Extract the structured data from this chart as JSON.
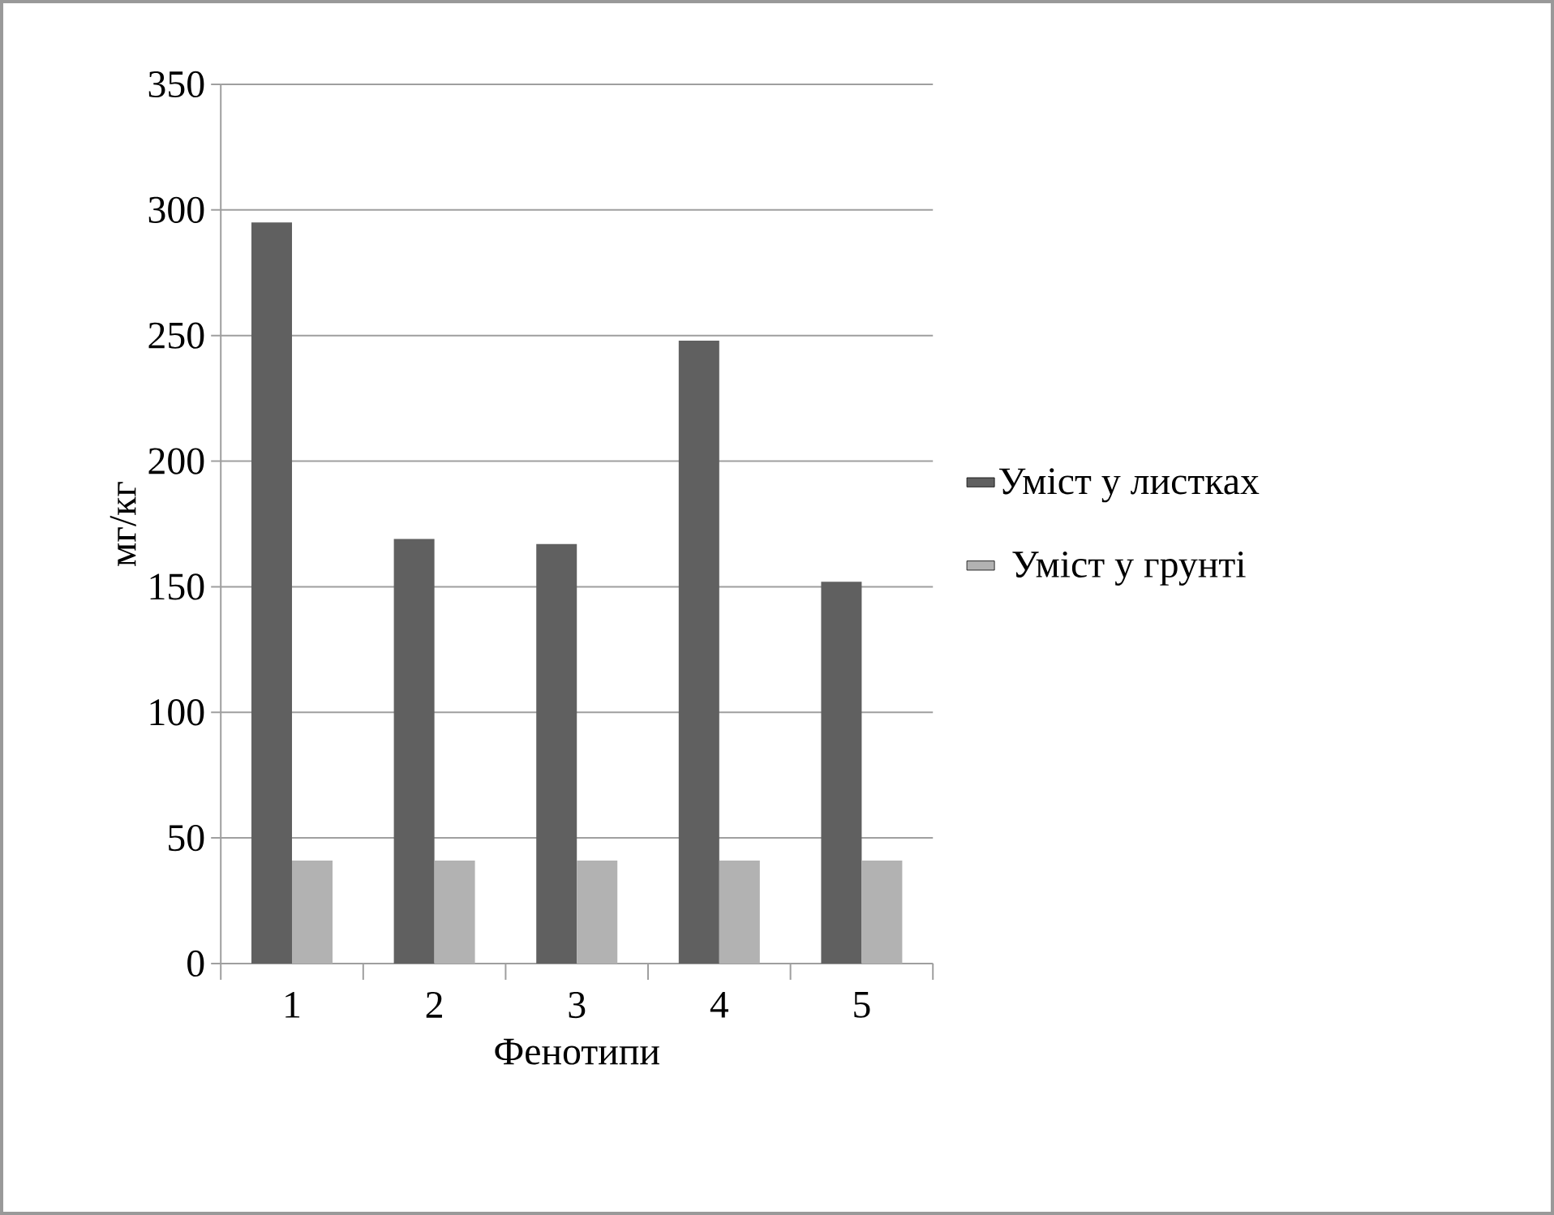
{
  "chart_data": {
    "type": "bar",
    "xlabel": "Фенотипи",
    "ylabel": "мг/кг",
    "categories": [
      "1",
      "2",
      "3",
      "4",
      "5"
    ],
    "series": [
      {
        "name": "Уміст у листках",
        "color": "#606060",
        "values": [
          295,
          169,
          167,
          248,
          152
        ]
      },
      {
        "name": "Уміст у грунті",
        "color": "#b2b2b2",
        "values": [
          41,
          41,
          41,
          41,
          41
        ]
      }
    ],
    "ylim": [
      0,
      350
    ],
    "yticks": [
      0,
      50,
      100,
      150,
      200,
      250,
      300,
      350
    ],
    "grid": "y",
    "legend": "right"
  }
}
